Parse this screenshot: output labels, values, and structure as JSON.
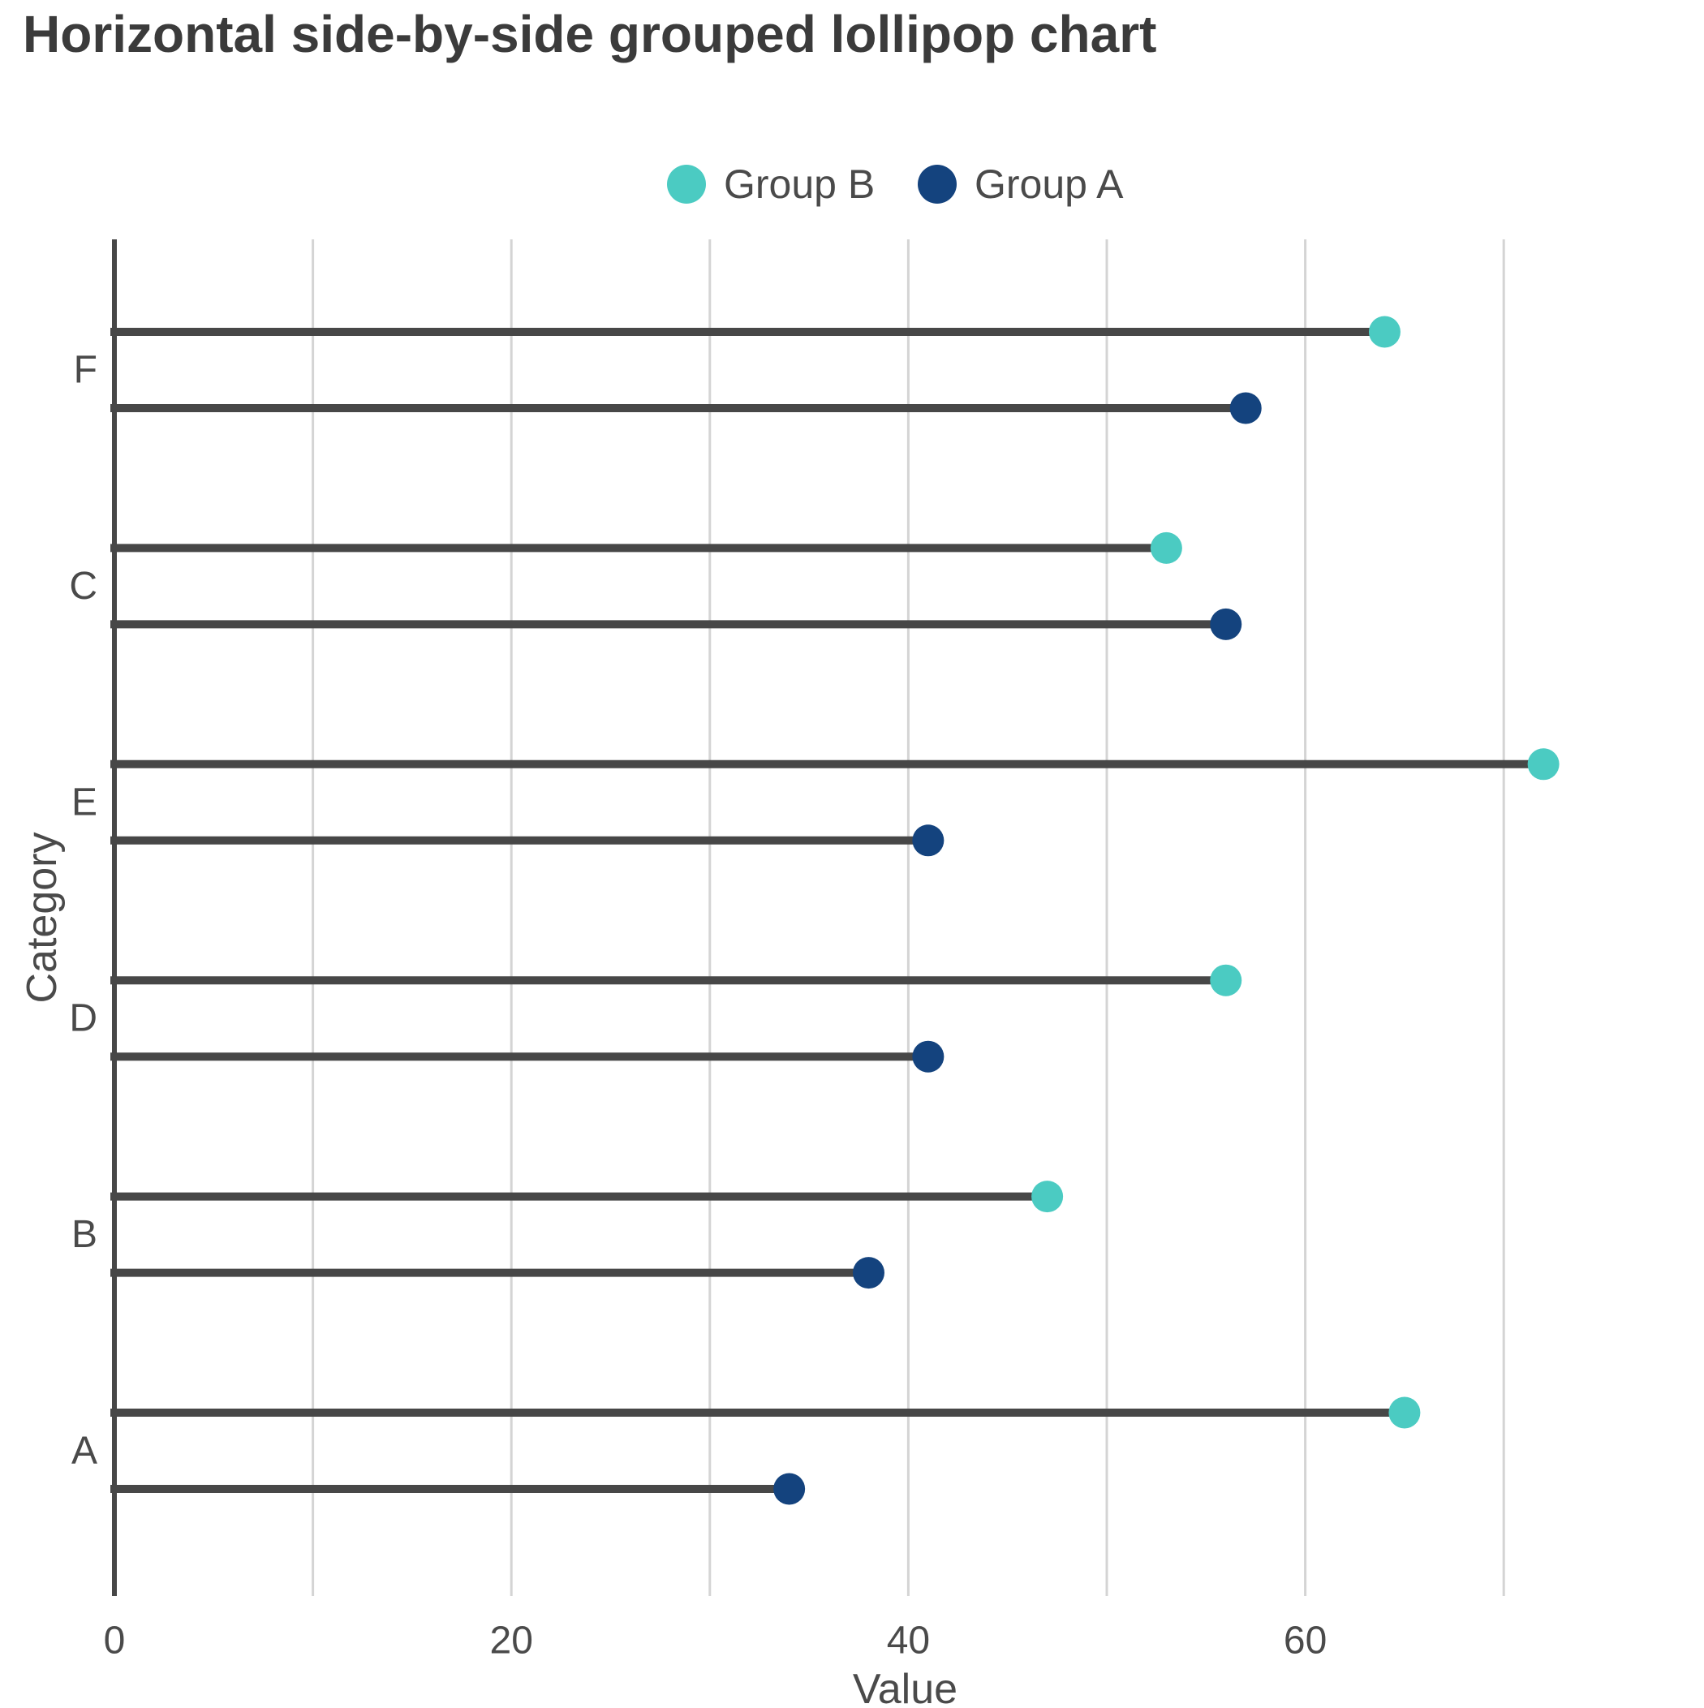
{
  "chart_data": {
    "type": "lollipop",
    "orientation": "horizontal",
    "grouping": "side-by-side",
    "title": "Horizontal side-by-side grouped lollipop chart",
    "xlabel": "Value",
    "ylabel": "Category",
    "categories_top_to_bottom": [
      "F",
      "C",
      "E",
      "D",
      "B",
      "A"
    ],
    "series": [
      {
        "name": "Group B",
        "color": "#4BCBC2",
        "values_by_category": {
          "F": 64,
          "C": 53,
          "E": 72,
          "D": 56,
          "B": 47,
          "A": 65
        },
        "values": [
          64,
          53,
          72,
          56,
          47,
          65
        ]
      },
      {
        "name": "Group A",
        "color": "#14437E",
        "values_by_category": {
          "F": 57,
          "C": 56,
          "E": 41,
          "D": 41,
          "B": 38,
          "A": 34
        },
        "values": [
          57,
          56,
          41,
          41,
          38,
          34
        ]
      }
    ],
    "legend": {
      "position": "top",
      "entries": [
        "Group B",
        "Group A"
      ]
    },
    "xlim": [
      0,
      80
    ],
    "xticks": [
      "0",
      "20",
      "40",
      "60"
    ],
    "xtick_values": [
      0,
      20,
      40,
      60
    ],
    "gridline_step": 10,
    "gridlines_max": 70,
    "grid": "vertical-only",
    "colors": {
      "stem": "#474747",
      "axis_line": "#474747",
      "gridline": "#D4D4D4",
      "title_text": "#3B3B3B",
      "label_text": "#4A4A4A"
    }
  }
}
